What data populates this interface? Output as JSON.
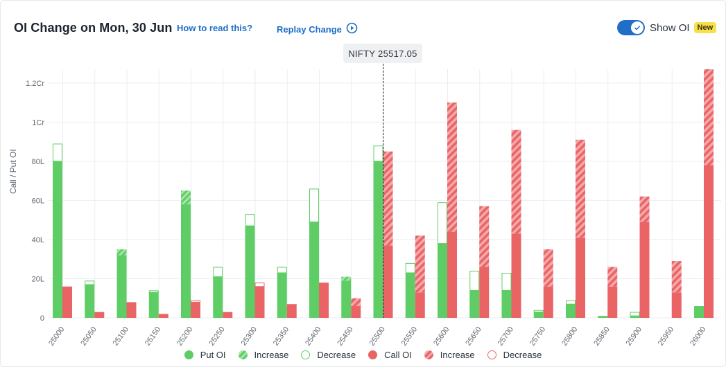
{
  "header": {
    "title": "OI Change on Mon, 30 Jun",
    "how_link": "How to read this?",
    "replay_label": "Replay Change",
    "toggle_label": "Show OI",
    "badge": "New"
  },
  "spot": {
    "label": "NIFTY 25517.05",
    "value": 25517.05
  },
  "legend": {
    "put_oi": "Put OI",
    "put_increase": "Increase",
    "put_decrease": "Decrease",
    "call_oi": "Call OI",
    "call_increase": "Increase",
    "call_decrease": "Decrease"
  },
  "colors": {
    "put": "#5fcd65",
    "put_light": "#9be39e",
    "call": "#ea6466",
    "call_light": "#f3a2a3",
    "grid": "#ebedf0",
    "axis_text": "#5d6670",
    "link": "#1f6fc6"
  },
  "chart_data": {
    "type": "bar",
    "ylabel": "Call / Put OI",
    "ylim": [
      0,
      12700000
    ],
    "yticks": [
      0,
      2000000,
      4000000,
      6000000,
      8000000,
      10000000,
      12000000
    ],
    "ytick_labels": [
      "0",
      "20L",
      "40L",
      "60L",
      "80L",
      "1Cr",
      "1.2Cr"
    ],
    "categories": [
      "25000",
      "25050",
      "25100",
      "25150",
      "25200",
      "25250",
      "25300",
      "25350",
      "25400",
      "25450",
      "25500",
      "25550",
      "25600",
      "25650",
      "25700",
      "25750",
      "25800",
      "25850",
      "25900",
      "25950",
      "26000"
    ],
    "spot_category_index": 10,
    "put": {
      "name": "Put OI",
      "base": [
        8000000,
        1700000,
        3200000,
        1300000,
        5800000,
        2100000,
        4700000,
        2300000,
        4900000,
        1900000,
        8000000,
        2300000,
        3800000,
        1400000,
        1400000,
        300000,
        700000,
        100000,
        100000,
        0,
        600000
      ],
      "increase": [
        0,
        0,
        300000,
        100000,
        700000,
        0,
        0,
        0,
        0,
        200000,
        0,
        0,
        0,
        0,
        0,
        0,
        0,
        0,
        0,
        0,
        0
      ],
      "decrease": [
        900000,
        200000,
        0,
        100000,
        0,
        500000,
        600000,
        300000,
        1700000,
        0,
        800000,
        500000,
        2100000,
        1000000,
        900000,
        100000,
        200000,
        0,
        200000,
        0,
        0
      ]
    },
    "call": {
      "name": "Call OI",
      "base": [
        1600000,
        300000,
        800000,
        200000,
        800000,
        300000,
        1600000,
        700000,
        1800000,
        600000,
        3700000,
        1300000,
        4400000,
        2600000,
        4300000,
        1600000,
        4100000,
        1600000,
        4900000,
        1300000,
        7800000
      ],
      "increase": [
        0,
        0,
        0,
        0,
        0,
        0,
        0,
        0,
        0,
        400000,
        4800000,
        2900000,
        6600000,
        3100000,
        5300000,
        1900000,
        5000000,
        1000000,
        1300000,
        1600000,
        4900000
      ],
      "decrease": [
        0,
        0,
        0,
        0,
        100000,
        0,
        200000,
        0,
        0,
        0,
        0,
        0,
        0,
        0,
        0,
        0,
        0,
        0,
        0,
        0,
        0
      ]
    }
  }
}
